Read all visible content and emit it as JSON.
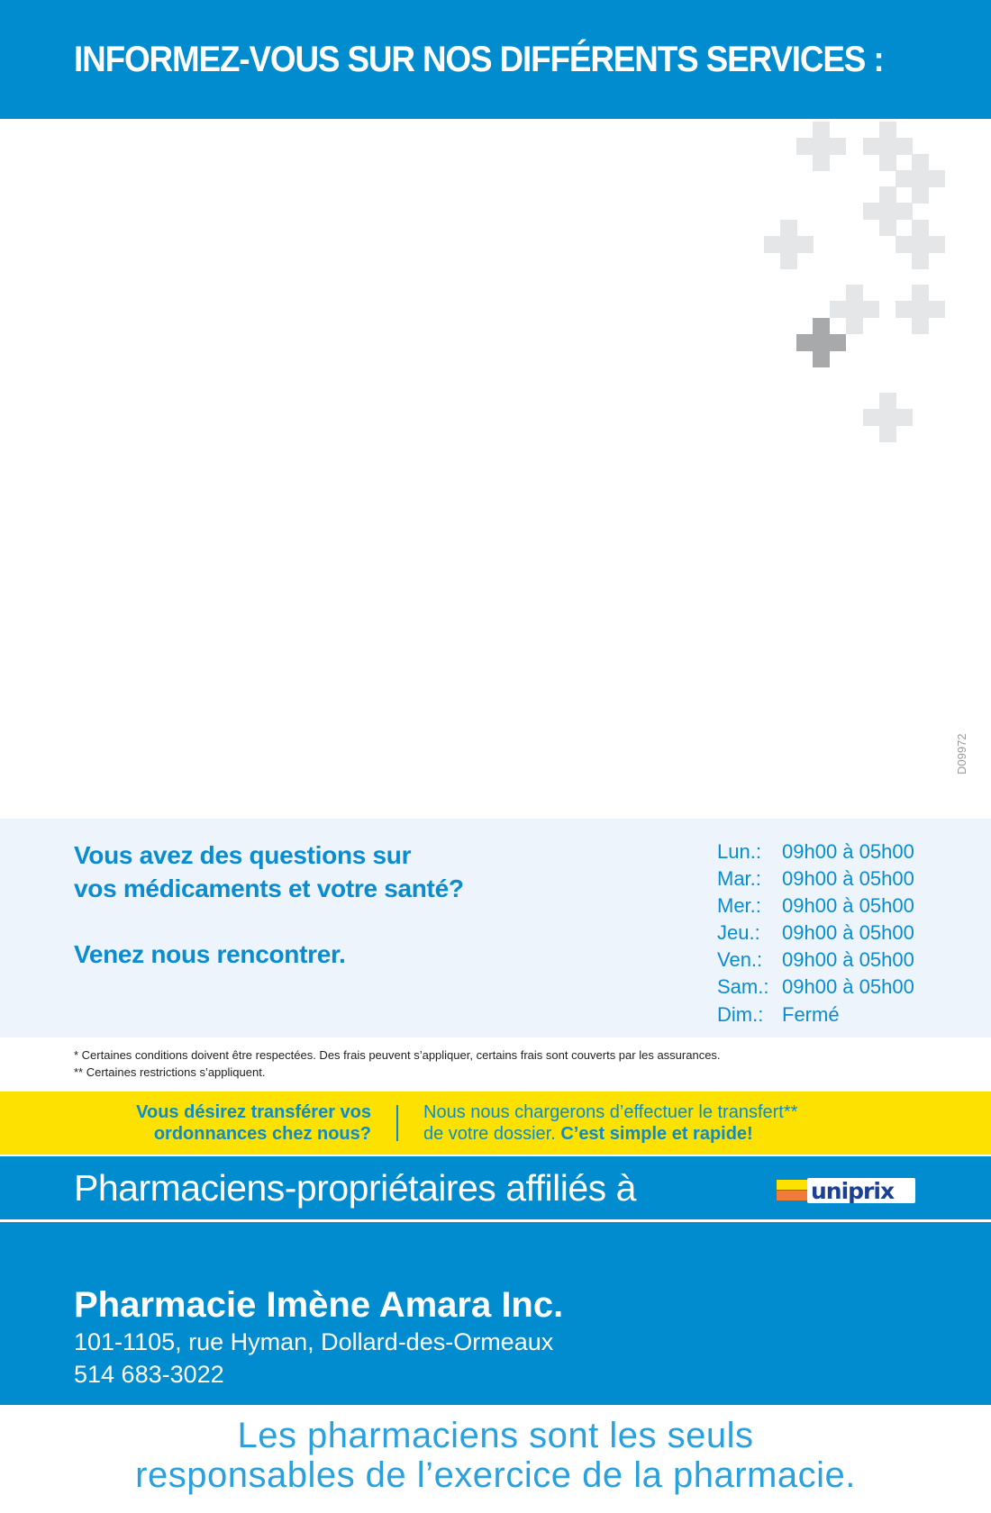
{
  "header": {
    "title": "INFORMEZ-VOUS SUR NOS DIFFÉRENTS SERVICES :"
  },
  "colors": {
    "brand_blue": "#008ccf",
    "text_blue": "#0a8ccf",
    "yellow": "#fde100",
    "light_bg": "#edf4fb",
    "cross_light": "#e5e6e8",
    "cross_dark": "#a8a9ab"
  },
  "decor": {
    "icon": "plus-cross-icon"
  },
  "code": "D09972",
  "info": {
    "question_line1": "Vous avez des questions sur",
    "question_line2": "vos médicaments et votre santé?",
    "invite": "Venez nous rencontrer.",
    "hours": [
      {
        "day": "Lun.:",
        "time": "09h00 à 05h00"
      },
      {
        "day": "Mar.:",
        "time": "09h00 à 05h00"
      },
      {
        "day": "Mer.:",
        "time": "09h00 à 05h00"
      },
      {
        "day": "Jeu.:",
        "time": "09h00 à 05h00"
      },
      {
        "day": "Ven.:",
        "time": "09h00 à 05h00"
      },
      {
        "day": "Sam.:",
        "time": "09h00 à 05h00"
      },
      {
        "day": "Dim.:",
        "time": "Fermé"
      }
    ]
  },
  "notes": [
    "* Certaines conditions doivent être respectées. Des frais peuvent s’appliquer, certains frais sont couverts par les assurances.",
    "** Certaines restrictions s’appliquent."
  ],
  "transfer": {
    "left_line1": "Vous désirez transférer vos",
    "left_line2": "ordonnances chez nous?",
    "right_line1": "Nous nous chargerons d’effectuer le transfert**",
    "right_line2": "de votre dossier.",
    "right_bold": "C’est simple et rapide!"
  },
  "affiliation": {
    "text": "Pharmaciens-propriétaires affiliés à",
    "logo_text": "uniprix"
  },
  "pharmacy": {
    "name": "Pharmacie Imène Amara Inc.",
    "address": "101-1105, rue Hyman, Dollard-des-Ormeaux",
    "phone": "514 683-3022"
  },
  "tagline": {
    "line1": "Les pharmaciens sont les seuls",
    "line2": "responsables de l’exercice de la pharmacie."
  }
}
